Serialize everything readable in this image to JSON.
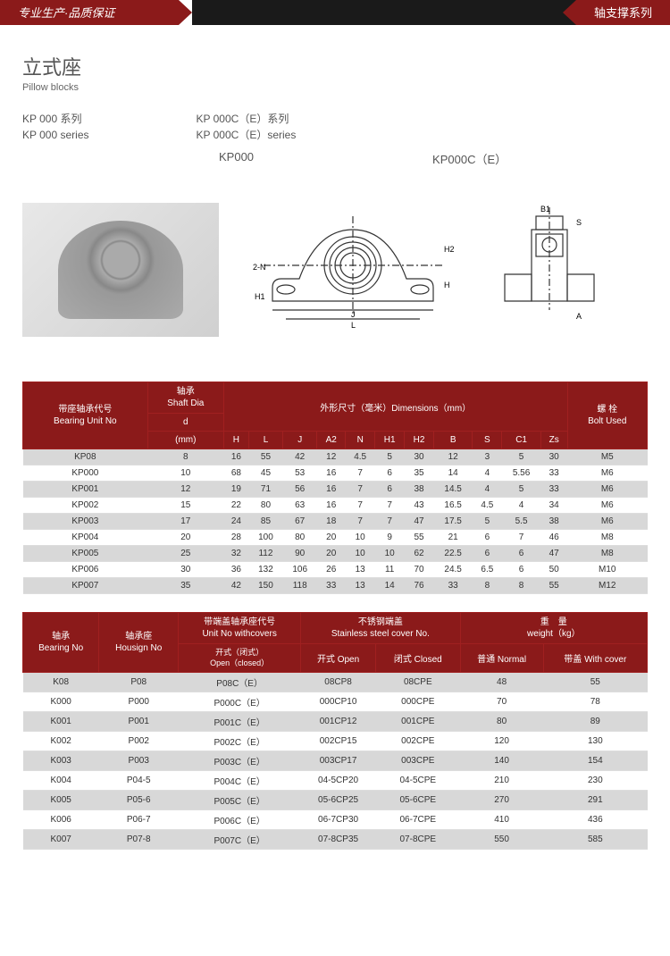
{
  "header": {
    "left": "专业生产·品质保证",
    "right": "轴支撑系列"
  },
  "title": {
    "cn": "立式座",
    "en": "Pillow blocks"
  },
  "series": {
    "col1_line1": "KP 000 系列",
    "col1_line2": "KP 000 series",
    "col2_line1": "KP 000C（E）系列",
    "col2_line2": "KP 000C（E）series"
  },
  "models": {
    "m1": "KP000",
    "m2": "KP000C（E）"
  },
  "diagram_labels": {
    "n2": "2-N",
    "h1": "H1",
    "j": "J",
    "l": "L",
    "h": "H",
    "h2": "H2",
    "b1": "B1",
    "s": "S",
    "a": "A"
  },
  "table1": {
    "headers": {
      "unit_no": "带座轴承代号",
      "unit_no_en": "Bearing Unit No",
      "shaft": "轴承",
      "shaft_dia": "Shaft Dia",
      "d": "d",
      "mm": "(mm)",
      "dims": "外形尺寸（毫米）Dimensions（mm）",
      "bolt": "螺 栓",
      "bolt_en": "Bolt Used",
      "H": "H",
      "L": "L",
      "J": "J",
      "A2": "A2",
      "N": "N",
      "H1": "H1",
      "H2": "H2",
      "B": "B",
      "S": "S",
      "C1": "C1",
      "Zs": "Zs"
    },
    "rows": [
      [
        "KP08",
        "8",
        "16",
        "55",
        "42",
        "12",
        "4.5",
        "5",
        "30",
        "12",
        "3",
        "5",
        "30",
        "M5"
      ],
      [
        "KP000",
        "10",
        "68",
        "45",
        "53",
        "16",
        "7",
        "6",
        "35",
        "14",
        "4",
        "5.56",
        "33",
        "M6"
      ],
      [
        "KP001",
        "12",
        "19",
        "71",
        "56",
        "16",
        "7",
        "6",
        "38",
        "14.5",
        "4",
        "5",
        "33",
        "M6"
      ],
      [
        "KP002",
        "15",
        "22",
        "80",
        "63",
        "16",
        "7",
        "7",
        "43",
        "16.5",
        "4.5",
        "4",
        "34",
        "M6"
      ],
      [
        "KP003",
        "17",
        "24",
        "85",
        "67",
        "18",
        "7",
        "7",
        "47",
        "17.5",
        "5",
        "5.5",
        "38",
        "M6"
      ],
      [
        "KP004",
        "20",
        "28",
        "100",
        "80",
        "20",
        "10",
        "9",
        "55",
        "21",
        "6",
        "7",
        "46",
        "M8"
      ],
      [
        "KP005",
        "25",
        "32",
        "112",
        "90",
        "20",
        "10",
        "10",
        "62",
        "22.5",
        "6",
        "6",
        "47",
        "M8"
      ],
      [
        "KP006",
        "30",
        "36",
        "132",
        "106",
        "26",
        "13",
        "11",
        "70",
        "24.5",
        "6.5",
        "6",
        "50",
        "M10"
      ],
      [
        "KP007",
        "35",
        "42",
        "150",
        "118",
        "33",
        "13",
        "14",
        "76",
        "33",
        "8",
        "8",
        "55",
        "M12"
      ]
    ]
  },
  "table2": {
    "headers": {
      "bearing": "轴承",
      "bearing_en": "Bearing No",
      "housing": "轴承座",
      "housing_en": "Housign No",
      "covers": "带端盖轴承座代号",
      "covers_en": "Unit No withcovers",
      "open_closed": "开式（闭式）",
      "open_closed_en": "Open（closed）",
      "ss": "不锈钢端盖",
      "ss_en": "Stainless steel cover No.",
      "open": "开式 Open",
      "closed": "闭式 Closed",
      "weight": "重　量",
      "weight_en": "weight（kg）",
      "normal": "普通 Normal",
      "with_cover": "带盖 With cover"
    },
    "rows": [
      [
        "K08",
        "P08",
        "P08C（E）",
        "08CP8",
        "08CPE",
        "48",
        "55"
      ],
      [
        "K000",
        "P000",
        "P000C（E）",
        "000CP10",
        "000CPE",
        "70",
        "78"
      ],
      [
        "K001",
        "P001",
        "P001C（E）",
        "001CP12",
        "001CPE",
        "80",
        "89"
      ],
      [
        "K002",
        "P002",
        "P002C（E）",
        "002CP15",
        "002CPE",
        "120",
        "130"
      ],
      [
        "K003",
        "P003",
        "P003C（E）",
        "003CP17",
        "003CPE",
        "140",
        "154"
      ],
      [
        "K004",
        "P04-5",
        "P004C（E）",
        "04-5CP20",
        "04-5CPE",
        "210",
        "230"
      ],
      [
        "K005",
        "P05-6",
        "P005C（E）",
        "05-6CP25",
        "05-6CPE",
        "270",
        "291"
      ],
      [
        "K006",
        "P06-7",
        "P006C（E）",
        "06-7CP30",
        "06-7CPE",
        "410",
        "436"
      ],
      [
        "K007",
        "P07-8",
        "P007C（E）",
        "07-8CP35",
        "07-8CPE",
        "550",
        "585"
      ]
    ]
  },
  "colors": {
    "header_red": "#8b1a1a",
    "header_black": "#1a1a1a",
    "row_odd": "#d8d8d8",
    "row_even": "#ffffff"
  }
}
